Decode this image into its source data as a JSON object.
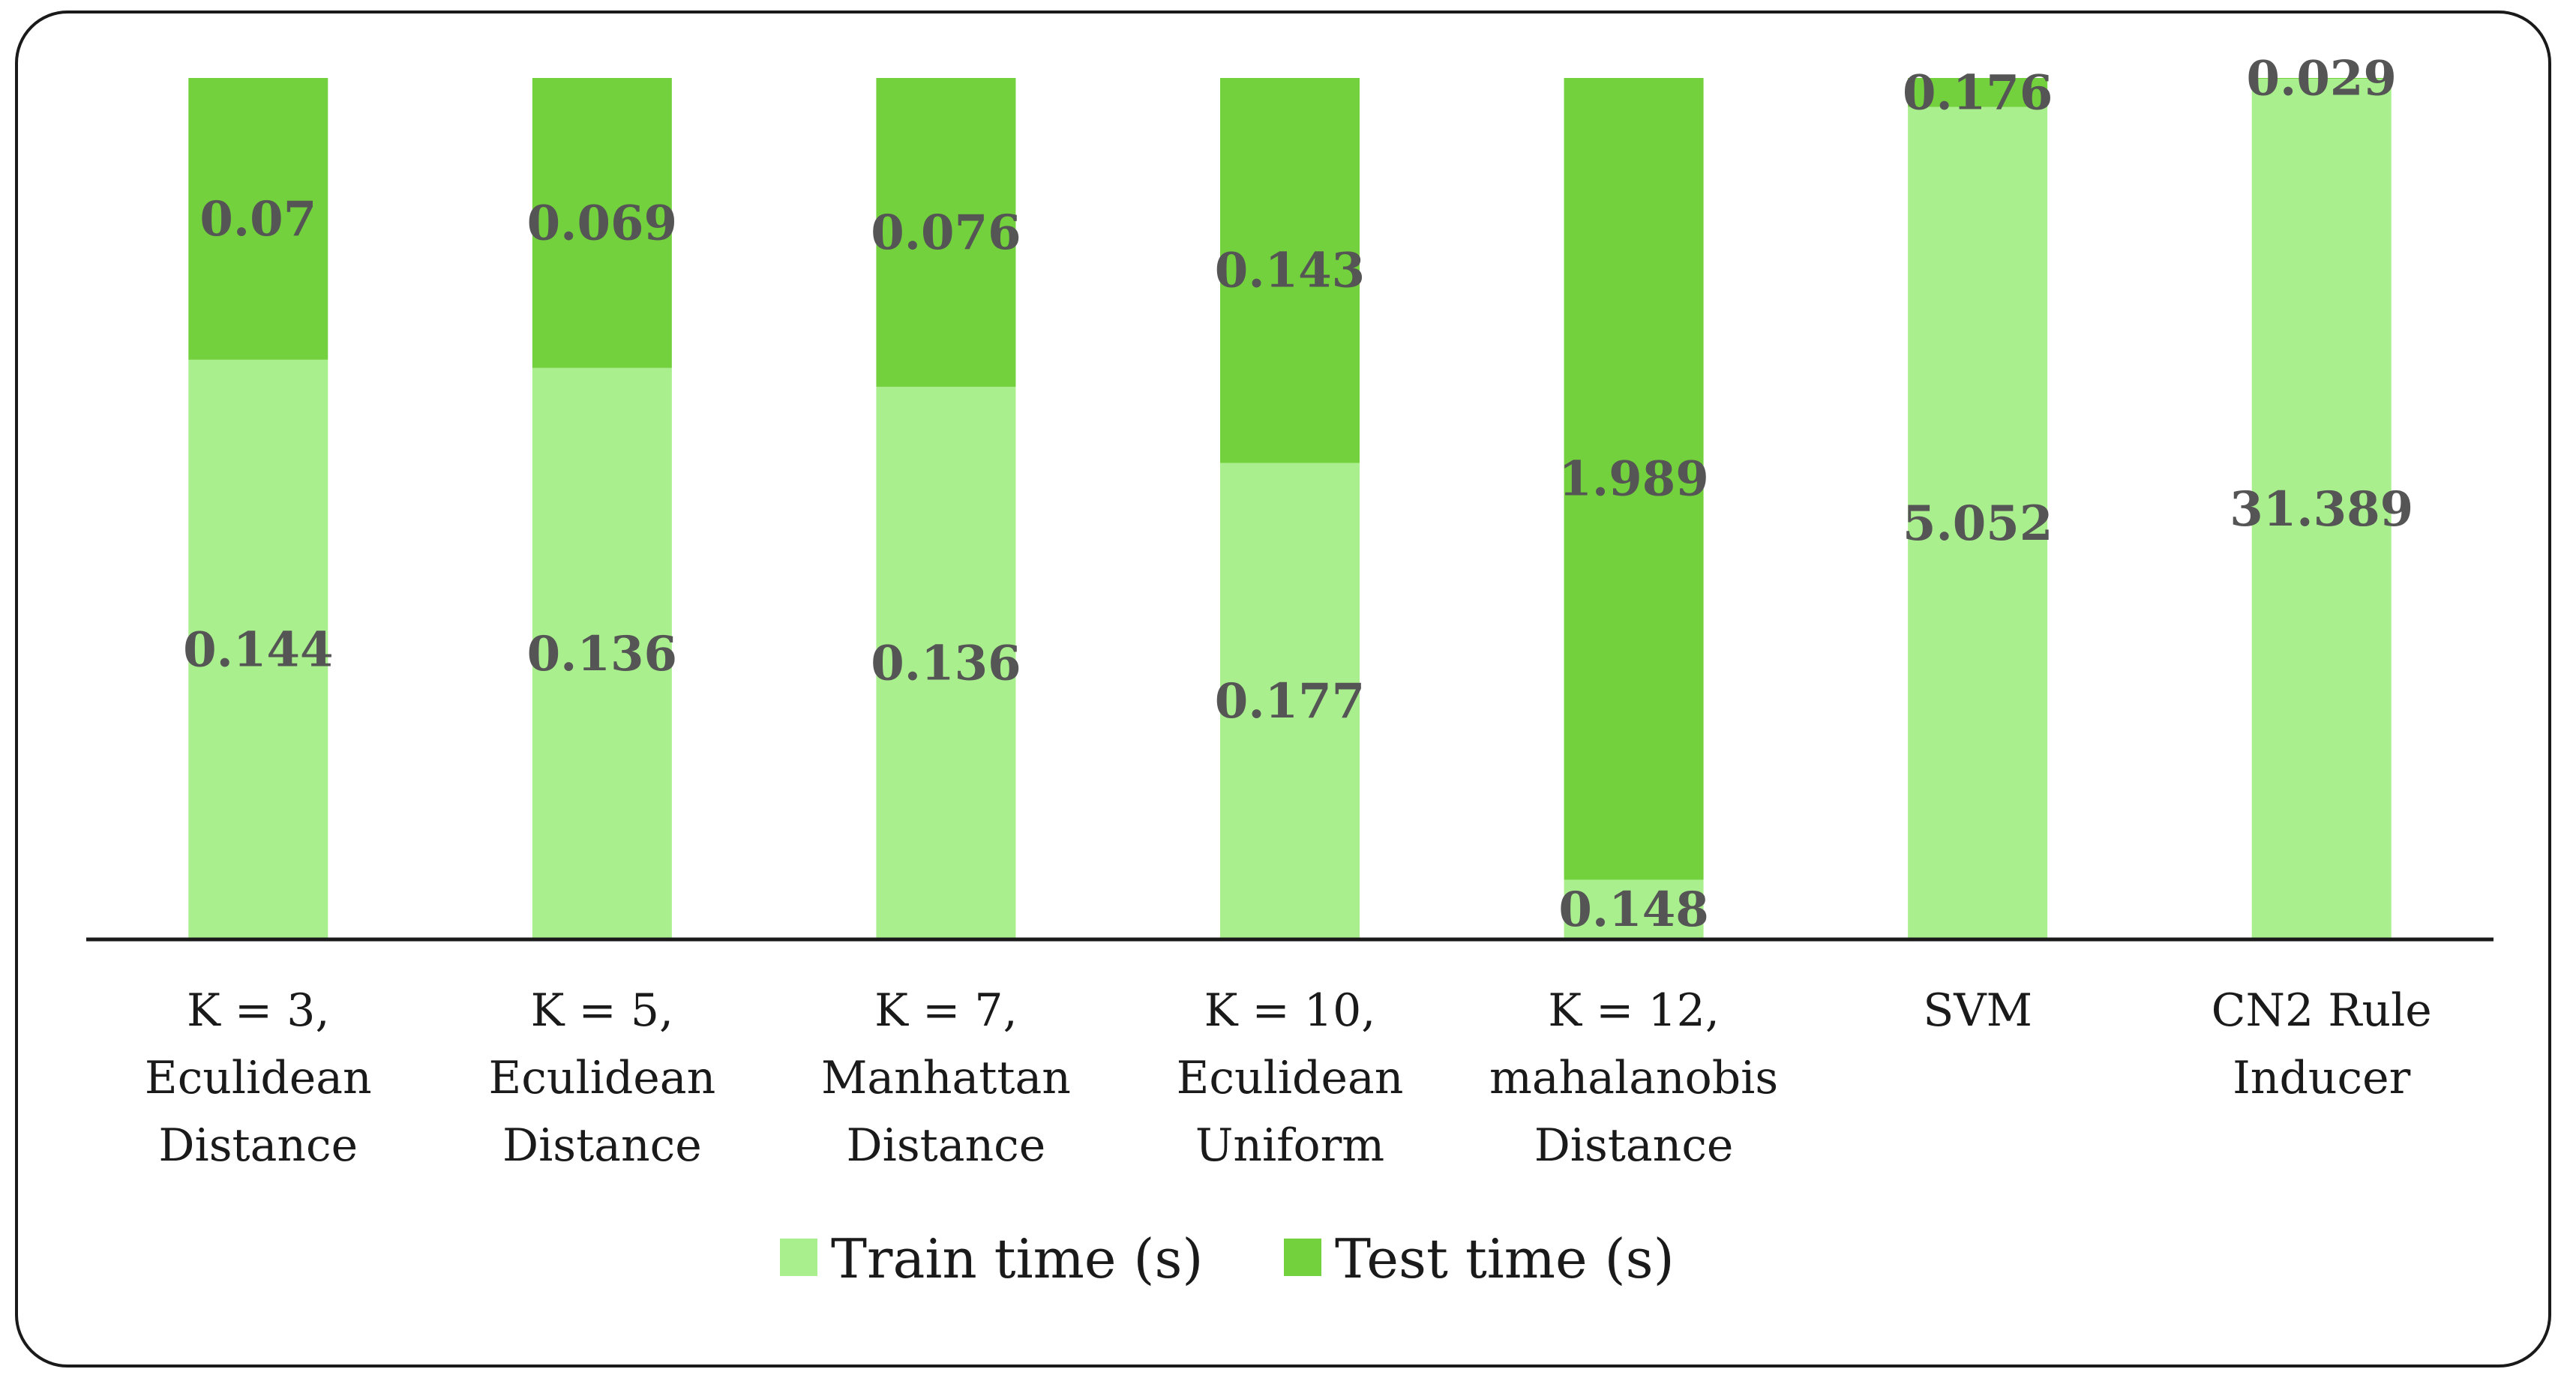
{
  "chart_data": {
    "type": "bar",
    "stacked": true,
    "normalized": true,
    "categories": [
      [
        "K = 3,",
        "Eculidean",
        "Distance"
      ],
      [
        "K = 5,",
        "Eculidean",
        "Distance"
      ],
      [
        "K = 7,",
        "Manhattan",
        "Distance"
      ],
      [
        "K = 10,",
        "Eculidean",
        "Uniform"
      ],
      [
        "K = 12,",
        "mahalanobis",
        "Distance"
      ],
      [
        "SVM"
      ],
      [
        "CN2 Rule",
        "Inducer"
      ]
    ],
    "series": [
      {
        "name": "Train time (s)",
        "color": "#a9ef8d",
        "values": [
          0.144,
          0.136,
          0.136,
          0.177,
          0.148,
          5.052,
          31.389
        ]
      },
      {
        "name": "Test time (s)",
        "color": "#72d13c",
        "values": [
          0.07,
          0.069,
          0.076,
          0.143,
          1.989,
          0.176,
          0.029
        ]
      }
    ],
    "legend_position": "bottom",
    "grid": false
  }
}
